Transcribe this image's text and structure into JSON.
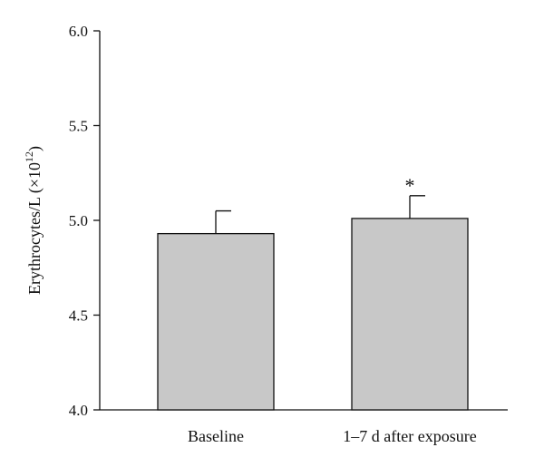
{
  "chart_data": {
    "type": "bar",
    "title": "",
    "xlabel": "",
    "ylabel": "Erythrocytes/L (×10",
    "ylabel_superscript": "12",
    "ylabel_suffix": ")",
    "ylim": [
      4.0,
      6.0
    ],
    "yticks": [
      "4.0",
      "4.5",
      "5.0",
      "5.5",
      "6.0"
    ],
    "categories": [
      "Baseline",
      "1–7 d after exposure"
    ],
    "values": [
      4.93,
      5.01
    ],
    "error_upper": [
      0.12,
      0.12
    ],
    "annotations": [
      "",
      "*"
    ],
    "bar_color": "#c8c8c8",
    "grid": false
  }
}
